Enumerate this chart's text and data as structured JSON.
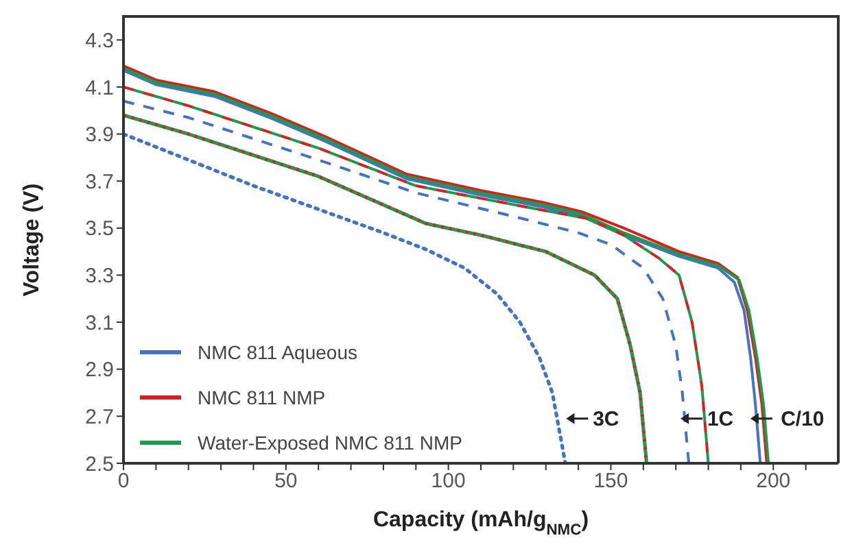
{
  "chart_data": {
    "type": "line",
    "xlabel": "Capacity (mAh/g$_{NMC}$)",
    "ylabel": "Voltage (V)",
    "xlim": [
      0,
      220
    ],
    "ylim": [
      2.5,
      4.4
    ],
    "xticks": [
      0,
      {
        "value": 10,
        "label": null
      },
      {
        "value": 20,
        "label": null
      },
      {
        "value": 30,
        "label": null
      },
      {
        "value": 40,
        "label": null
      },
      50,
      {
        "value": 60,
        "label": null
      },
      {
        "value": 70,
        "label": null
      },
      {
        "value": 80,
        "label": null
      },
      {
        "value": 90,
        "label": null
      },
      100,
      {
        "value": 110,
        "label": null
      },
      {
        "value": 120,
        "label": null
      },
      {
        "value": 130,
        "label": null
      },
      {
        "value": 140,
        "label": null
      },
      150,
      {
        "value": 160,
        "label": null
      },
      {
        "value": 170,
        "label": null
      },
      {
        "value": 180,
        "label": null
      },
      {
        "value": 190,
        "label": null
      },
      200,
      {
        "value": 210,
        "label": null
      }
    ],
    "yticks": [
      2.5,
      2.7,
      2.9,
      3.1,
      3.3,
      3.5,
      3.7,
      3.9,
      4.1,
      4.3
    ],
    "legend": "bottom left",
    "marker": "none",
    "series": [
      {
        "name": "NMC 811 Aqueous",
        "color": "#4472c4",
        "line_style": "solid",
        "x": [
          0,
          10,
          28,
          45,
          62,
          87,
          110,
          129,
          141,
          154,
          171,
          183,
          188,
          191,
          193,
          194.5,
          196
        ],
        "values": [
          4.17,
          4.11,
          4.06,
          3.97,
          3.87,
          3.71,
          3.64,
          3.59,
          3.55,
          3.47,
          3.38,
          3.33,
          3.27,
          3.15,
          2.95,
          2.75,
          2.5
        ]
      },
      {
        "name": "NMC 811 NMP",
        "color": "#d62020",
        "line_style": "solid",
        "x": [
          0,
          10,
          28,
          45,
          62,
          87,
          110,
          129,
          141,
          154,
          171,
          183,
          189,
          192,
          194.5,
          196.5,
          198
        ],
        "values": [
          4.19,
          4.13,
          4.08,
          3.99,
          3.89,
          3.73,
          3.66,
          3.61,
          3.57,
          3.5,
          3.4,
          3.35,
          3.29,
          3.15,
          2.95,
          2.75,
          2.5
        ]
      },
      {
        "name": "Water-Exposed NMC 811 NMP",
        "color": "#1f9a4c",
        "line_style": "solid",
        "x": [
          0,
          10,
          28,
          45,
          62,
          87,
          110,
          129,
          141,
          154,
          171,
          183,
          189.5,
          192.5,
          195,
          197,
          198.5
        ],
        "values": [
          4.18,
          4.12,
          4.07,
          3.98,
          3.88,
          3.72,
          3.65,
          3.6,
          3.56,
          3.48,
          3.39,
          3.34,
          3.28,
          3.15,
          2.95,
          2.75,
          2.5
        ]
      },
      {
        "color": "#4472c4",
        "line_style": "dashed",
        "x": [
          0,
          20,
          40,
          60,
          90,
          120,
          140,
          150,
          160,
          166,
          170,
          172,
          174
        ],
        "values": [
          4.04,
          3.97,
          3.88,
          3.79,
          3.65,
          3.55,
          3.48,
          3.43,
          3.33,
          3.2,
          3.0,
          2.8,
          2.5
        ]
      },
      {
        "color": "#d62020",
        "line_style": "dashed",
        "x": [
          0,
          20,
          40,
          60,
          90,
          120,
          143,
          154,
          165,
          171,
          175,
          178,
          180
        ],
        "values": [
          4.1,
          4.02,
          3.93,
          3.84,
          3.68,
          3.6,
          3.54,
          3.47,
          3.37,
          3.3,
          3.1,
          2.83,
          2.5
        ]
      },
      {
        "color": "#1f9a4c",
        "line_style": "dashed",
        "x": [
          0,
          20,
          40,
          60,
          90,
          120,
          143,
          154,
          165,
          171,
          175,
          178,
          180
        ],
        "values": [
          4.1,
          4.02,
          3.93,
          3.84,
          3.68,
          3.6,
          3.54,
          3.47,
          3.37,
          3.3,
          3.1,
          2.83,
          2.5
        ]
      },
      {
        "color": "#4472c4",
        "line_style": "dotted",
        "x": [
          0,
          20,
          40,
          60,
          80,
          93,
          105,
          115,
          122,
          128,
          132,
          136
        ],
        "values": [
          3.9,
          3.79,
          3.68,
          3.58,
          3.48,
          3.41,
          3.33,
          3.22,
          3.1,
          2.95,
          2.8,
          2.5
        ]
      },
      {
        "color": "#d62020",
        "line_style": "dotted",
        "x": [
          0,
          20,
          40,
          60,
          93,
          110,
          130,
          145,
          152,
          156,
          159,
          161
        ],
        "values": [
          3.98,
          3.9,
          3.81,
          3.72,
          3.52,
          3.47,
          3.4,
          3.3,
          3.2,
          3.0,
          2.8,
          2.5
        ]
      },
      {
        "color": "#1f9a4c",
        "line_style": "dotted",
        "x": [
          0,
          20,
          40,
          60,
          93,
          110,
          130,
          145,
          152,
          156,
          159,
          161
        ],
        "values": [
          3.98,
          3.9,
          3.81,
          3.72,
          3.52,
          3.47,
          3.4,
          3.3,
          3.2,
          3.0,
          2.8,
          2.5
        ]
      }
    ],
    "annotations": [
      "3C",
      "1C",
      "C/10"
    ]
  }
}
